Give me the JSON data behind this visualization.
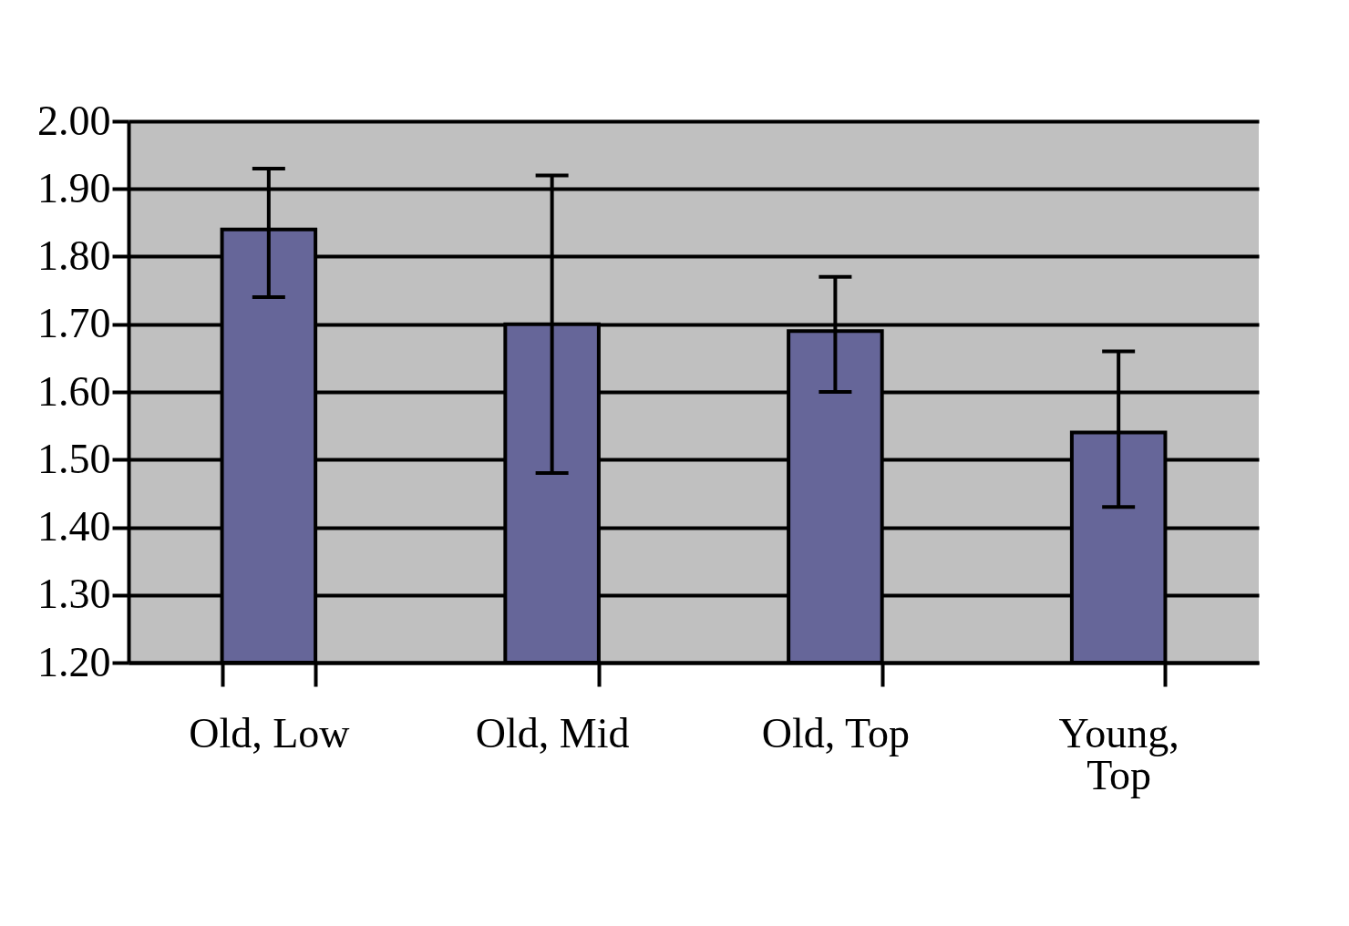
{
  "chart_data": {
    "type": "bar",
    "categories": [
      "Old, Low",
      "Old, Mid",
      "Old, Top",
      "Young, Top"
    ],
    "values": [
      1.84,
      1.7,
      1.69,
      1.54
    ],
    "color": "#666699",
    "errors": [
      [
        1.74,
        1.93
      ],
      [
        1.48,
        1.92
      ],
      [
        1.6,
        1.77
      ],
      [
        1.43,
        1.66
      ]
    ],
    "ylim": [
      1.2,
      2.0
    ],
    "yticks": [
      {
        "value": 1.2,
        "label": "1.20"
      },
      {
        "value": 1.3,
        "label": "1.30"
      },
      {
        "value": 1.4,
        "label": "1.40"
      },
      {
        "value": 1.5,
        "label": "1.50"
      },
      {
        "value": 1.6,
        "label": "1.60"
      },
      {
        "value": 1.7,
        "label": "1.70"
      },
      {
        "value": 1.8,
        "label": "1.80"
      },
      {
        "value": 1.9,
        "label": "1.90"
      },
      {
        "value": 2.0,
        "label": "2.00"
      }
    ],
    "grid": "y",
    "legend": false
  }
}
